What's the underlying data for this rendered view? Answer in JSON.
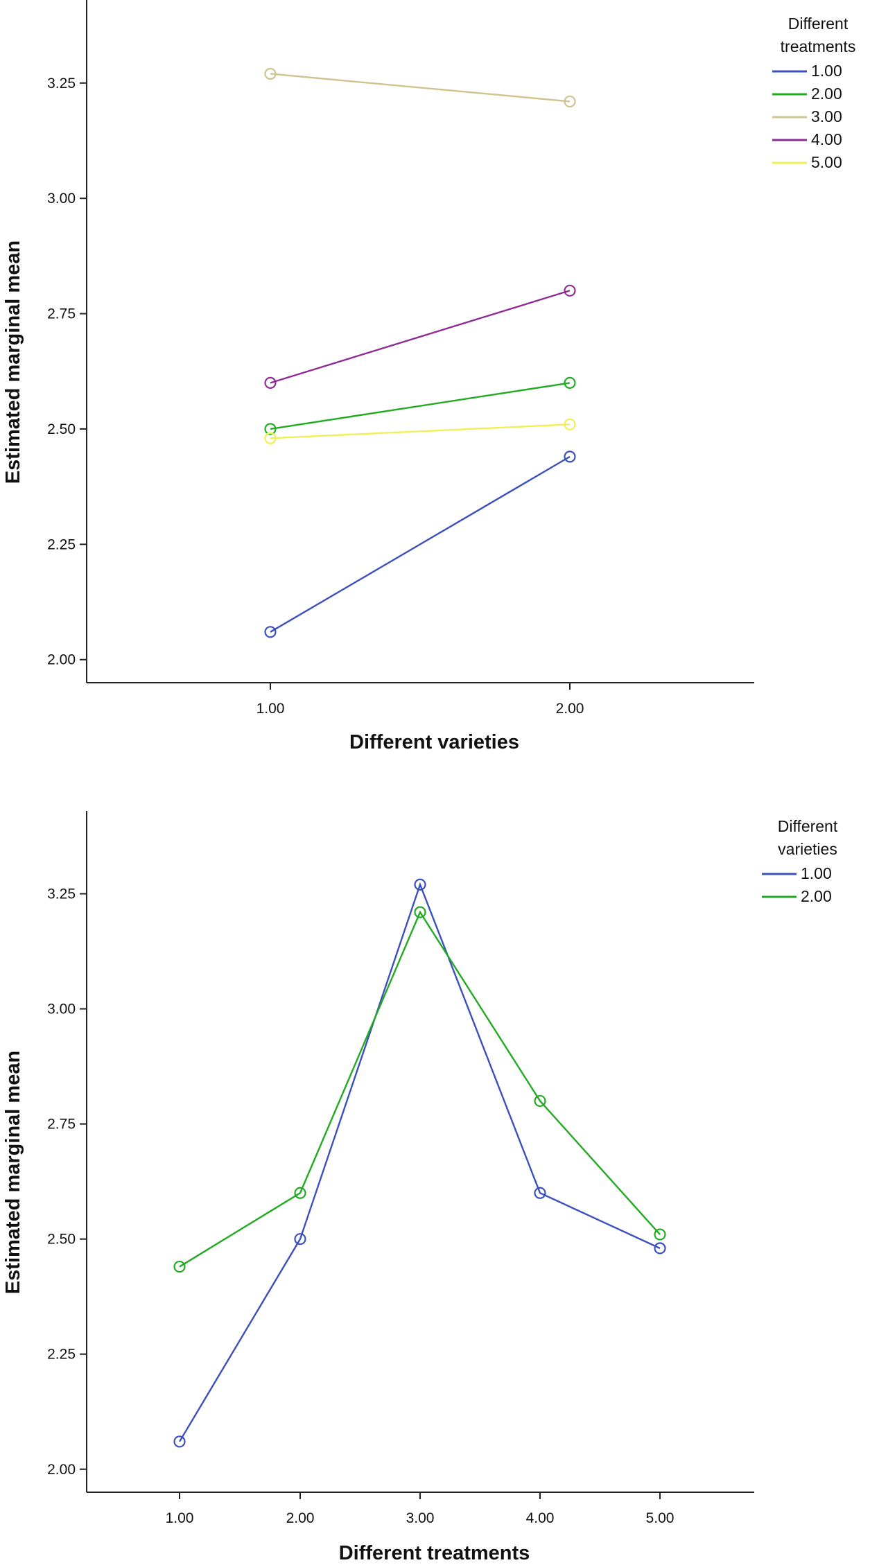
{
  "chart_data": [
    {
      "type": "line",
      "xlabel": "Different varieties",
      "ylabel": "Estimated marginal mean",
      "categories": [
        "1.00",
        "2.00"
      ],
      "ylim": [
        1.95,
        3.43
      ],
      "yticks": [
        "2.00",
        "2.25",
        "2.50",
        "2.75",
        "3.00",
        "3.25"
      ],
      "grid": false,
      "legend_title": "Different treatments",
      "legend_position": "top-right",
      "series": [
        {
          "name": "1.00",
          "color": "#3b4fbf",
          "values": [
            2.06,
            2.44
          ]
        },
        {
          "name": "2.00",
          "color": "#22aa22",
          "values": [
            2.5,
            2.6
          ]
        },
        {
          "name": "3.00",
          "color": "#cfc38f",
          "values": [
            3.27,
            3.21
          ]
        },
        {
          "name": "4.00",
          "color": "#8e2b94",
          "values": [
            2.6,
            2.8
          ]
        },
        {
          "name": "5.00",
          "color": "#f2ee55",
          "values": [
            2.48,
            2.51
          ]
        }
      ]
    },
    {
      "type": "line",
      "xlabel": "Different treatments",
      "ylabel": "Estimated marginal mean",
      "categories": [
        "1.00",
        "2.00",
        "3.00",
        "4.00",
        "5.00"
      ],
      "ylim": [
        1.95,
        3.43
      ],
      "yticks": [
        "2.00",
        "2.25",
        "2.50",
        "2.75",
        "3.00",
        "3.25"
      ],
      "grid": false,
      "legend_title": "Different varieties",
      "legend_position": "top-right",
      "series": [
        {
          "name": "1.00",
          "color": "#3b4fbf",
          "values": [
            2.06,
            2.5,
            3.27,
            2.6,
            2.48
          ]
        },
        {
          "name": "2.00",
          "color": "#22aa22",
          "values": [
            2.44,
            2.6,
            3.21,
            2.8,
            2.51
          ]
        }
      ]
    }
  ]
}
